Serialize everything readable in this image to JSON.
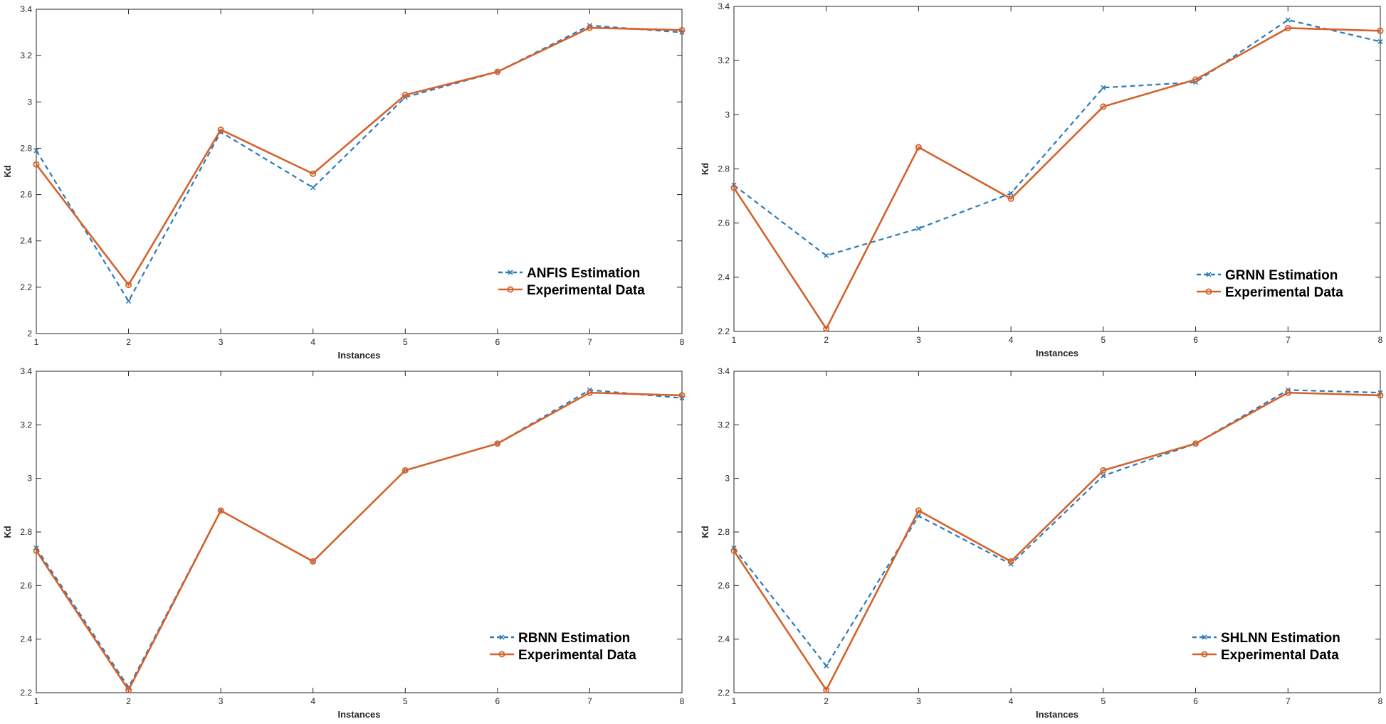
{
  "figure": {
    "background": "#ffffff"
  },
  "colors": {
    "estimation": "#2b7bba",
    "experimental": "#d4622c",
    "axis": "#262626"
  },
  "chart_data": [
    {
      "type": "line",
      "xlabel": "Instances",
      "ylabel": "Kd",
      "x": [
        1,
        2,
        3,
        4,
        5,
        6,
        7,
        8
      ],
      "xticks": [
        "1",
        "2",
        "3",
        "4",
        "5",
        "6",
        "7",
        "8"
      ],
      "ylim": [
        2,
        3.4
      ],
      "yticks": [
        "2",
        "2.2",
        "2.4",
        "2.6",
        "2.8",
        "3",
        "3.2",
        "3.4"
      ],
      "legend_position": "bottom-right",
      "series": [
        {
          "name": "ANFIS Estimation",
          "style": "dashed-x",
          "values": [
            2.79,
            2.14,
            2.87,
            2.63,
            3.02,
            3.13,
            3.33,
            3.3
          ]
        },
        {
          "name": "Experimental Data",
          "style": "solid-circle",
          "values": [
            2.73,
            2.21,
            2.88,
            2.69,
            3.03,
            3.13,
            3.32,
            3.31
          ]
        }
      ]
    },
    {
      "type": "line",
      "xlabel": "Instances",
      "ylabel": "Kd",
      "x": [
        1,
        2,
        3,
        4,
        5,
        6,
        7,
        8
      ],
      "xticks": [
        "1",
        "2",
        "3",
        "4",
        "5",
        "6",
        "7",
        "8"
      ],
      "ylim": [
        2.2,
        3.4
      ],
      "yticks": [
        "2.2",
        "2.4",
        "2.6",
        "2.8",
        "3",
        "3.2",
        "3.4"
      ],
      "legend_position": "bottom-right",
      "series": [
        {
          "name": "GRNN Estimation",
          "style": "dashed-x",
          "values": [
            2.74,
            2.48,
            2.58,
            2.71,
            3.1,
            3.12,
            3.35,
            3.27
          ]
        },
        {
          "name": "Experimental Data",
          "style": "solid-circle",
          "values": [
            2.73,
            2.21,
            2.88,
            2.69,
            3.03,
            3.13,
            3.32,
            3.31
          ]
        }
      ]
    },
    {
      "type": "line",
      "xlabel": "Instances",
      "ylabel": "Kd",
      "x": [
        1,
        2,
        3,
        4,
        5,
        6,
        7,
        8
      ],
      "xticks": [
        "1",
        "2",
        "3",
        "4",
        "5",
        "6",
        "7",
        "8"
      ],
      "ylim": [
        2.2,
        3.4
      ],
      "yticks": [
        "2.2",
        "2.4",
        "2.6",
        "2.8",
        "3",
        "3.2",
        "3.4"
      ],
      "legend_position": "bottom-right",
      "series": [
        {
          "name": "RBNN Estimation",
          "style": "dashed-x",
          "values": [
            2.74,
            2.22,
            2.88,
            2.69,
            3.03,
            3.13,
            3.33,
            3.3
          ]
        },
        {
          "name": "Experimental Data",
          "style": "solid-circle",
          "values": [
            2.73,
            2.21,
            2.88,
            2.69,
            3.03,
            3.13,
            3.32,
            3.31
          ]
        }
      ]
    },
    {
      "type": "line",
      "xlabel": "Instances",
      "ylabel": "Kd",
      "x": [
        1,
        2,
        3,
        4,
        5,
        6,
        7,
        8
      ],
      "xticks": [
        "1",
        "2",
        "3",
        "4",
        "5",
        "6",
        "7",
        "8"
      ],
      "ylim": [
        2.2,
        3.4
      ],
      "yticks": [
        "2.2",
        "2.4",
        "2.6",
        "2.8",
        "3",
        "3.2",
        "3.4"
      ],
      "legend_position": "bottom-right",
      "series": [
        {
          "name": "SHLNN Estimation",
          "style": "dashed-x",
          "values": [
            2.74,
            2.3,
            2.86,
            2.68,
            3.01,
            3.13,
            3.33,
            3.32
          ]
        },
        {
          "name": "Experimental Data",
          "style": "solid-circle",
          "values": [
            2.73,
            2.21,
            2.88,
            2.69,
            3.03,
            3.13,
            3.32,
            3.31
          ]
        }
      ]
    }
  ]
}
